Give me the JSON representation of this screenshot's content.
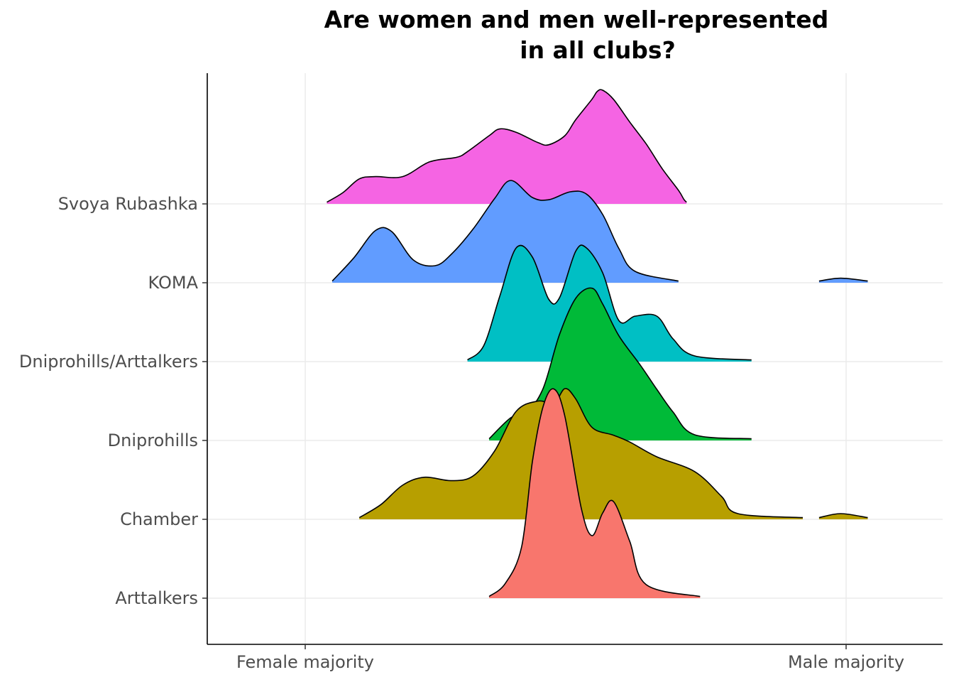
{
  "chart_data": {
    "type": "ridgeline",
    "title": "Are women and men well-represented\nin all clubs?",
    "title_lines": [
      "Are women and men well-represented",
      "in all clubs?"
    ],
    "xlabel": "",
    "ylabel": "",
    "x_tick_labels": [
      "Female majority",
      "Male majority"
    ],
    "x_tick_values": [
      0,
      1
    ],
    "xlim": [
      -0.18,
      1.18
    ],
    "grid": true,
    "legend": "none",
    "categories": [
      "Svoya Rubashka",
      "KOMA",
      "Dniprohills/Arttalkers",
      "Dniprohills",
      "Chamber",
      "Arttalkers"
    ],
    "series": [
      {
        "name": "Svoya Rubashka",
        "color": "#F564E3",
        "segments": [
          [
            [
              0.04,
              0.015
            ],
            [
              0.07,
              0.1
            ],
            [
              0.1,
              0.22
            ],
            [
              0.13,
              0.24
            ],
            [
              0.18,
              0.24
            ],
            [
              0.23,
              0.37
            ],
            [
              0.28,
              0.41
            ],
            [
              0.3,
              0.46
            ],
            [
              0.34,
              0.6
            ],
            [
              0.36,
              0.66
            ],
            [
              0.39,
              0.63
            ],
            [
              0.43,
              0.54
            ],
            [
              0.45,
              0.52
            ],
            [
              0.48,
              0.6
            ],
            [
              0.5,
              0.74
            ],
            [
              0.53,
              0.92
            ],
            [
              0.54,
              0.99
            ],
            [
              0.55,
              1.0
            ],
            [
              0.57,
              0.92
            ],
            [
              0.6,
              0.72
            ],
            [
              0.63,
              0.53
            ],
            [
              0.66,
              0.31
            ],
            [
              0.69,
              0.12
            ],
            [
              0.7,
              0.04
            ],
            [
              0.705,
              0.015
            ]
          ]
        ]
      },
      {
        "name": "KOMA",
        "color": "#619CFF",
        "segments": [
          [
            [
              0.05,
              0.015
            ],
            [
              0.09,
              0.22
            ],
            [
              0.13,
              0.46
            ],
            [
              0.16,
              0.45
            ],
            [
              0.2,
              0.2
            ],
            [
              0.24,
              0.15
            ],
            [
              0.27,
              0.25
            ],
            [
              0.31,
              0.47
            ],
            [
              0.35,
              0.74
            ],
            [
              0.38,
              0.9
            ],
            [
              0.42,
              0.75
            ],
            [
              0.45,
              0.73
            ],
            [
              0.49,
              0.8
            ],
            [
              0.52,
              0.78
            ],
            [
              0.55,
              0.6
            ],
            [
              0.58,
              0.3
            ],
            [
              0.61,
              0.1
            ],
            [
              0.69,
              0.015
            ]
          ],
          [
            [
              0.95,
              0.015
            ],
            [
              0.99,
              0.04
            ],
            [
              1.04,
              0.015
            ]
          ]
        ]
      },
      {
        "name": "Dniprohills/Arttalkers",
        "color": "#00BFC4",
        "segments": [
          [
            [
              0.3,
              0.015
            ],
            [
              0.33,
              0.14
            ],
            [
              0.36,
              0.58
            ],
            [
              0.39,
              1.0
            ],
            [
              0.42,
              0.92
            ],
            [
              0.45,
              0.55
            ],
            [
              0.47,
              0.56
            ],
            [
              0.5,
              0.97
            ],
            [
              0.52,
              1.0
            ],
            [
              0.55,
              0.78
            ],
            [
              0.58,
              0.36
            ],
            [
              0.61,
              0.4
            ],
            [
              0.65,
              0.4
            ],
            [
              0.68,
              0.2
            ],
            [
              0.72,
              0.05
            ],
            [
              0.825,
              0.015
            ]
          ]
        ]
      },
      {
        "name": "Dniprohills",
        "color": "#00BA38",
        "segments": [
          [
            [
              0.34,
              0.015
            ],
            [
              0.38,
              0.2
            ],
            [
              0.41,
              0.25
            ],
            [
              0.44,
              0.46
            ],
            [
              0.47,
              0.93
            ],
            [
              0.5,
              1.25
            ],
            [
              0.53,
              1.34
            ],
            [
              0.55,
              1.2
            ],
            [
              0.58,
              0.92
            ],
            [
              0.62,
              0.66
            ],
            [
              0.65,
              0.45
            ],
            [
              0.68,
              0.25
            ],
            [
              0.72,
              0.05
            ],
            [
              0.825,
              0.015
            ]
          ]
        ]
      },
      {
        "name": "Chamber",
        "color": "#B79F00",
        "segments": [
          [
            [
              0.1,
              0.015
            ],
            [
              0.14,
              0.13
            ],
            [
              0.18,
              0.3
            ],
            [
              0.22,
              0.37
            ],
            [
              0.27,
              0.34
            ],
            [
              0.31,
              0.38
            ],
            [
              0.35,
              0.6
            ],
            [
              0.39,
              0.95
            ],
            [
              0.43,
              1.04
            ],
            [
              0.46,
              1.02
            ],
            [
              0.48,
              1.15
            ],
            [
              0.5,
              1.06
            ],
            [
              0.53,
              0.81
            ],
            [
              0.57,
              0.74
            ],
            [
              0.6,
              0.68
            ],
            [
              0.65,
              0.55
            ],
            [
              0.72,
              0.42
            ],
            [
              0.77,
              0.2
            ],
            [
              0.8,
              0.05
            ],
            [
              0.92,
              0.015
            ]
          ],
          [
            [
              0.95,
              0.015
            ],
            [
              0.99,
              0.05
            ],
            [
              1.04,
              0.015
            ]
          ]
        ]
      },
      {
        "name": "Arttalkers",
        "color": "#F8766D",
        "segments": [
          [
            [
              0.34,
              0.015
            ],
            [
              0.37,
              0.13
            ],
            [
              0.4,
              0.45
            ],
            [
              0.42,
              1.2
            ],
            [
              0.44,
              1.69
            ],
            [
              0.46,
              1.84
            ],
            [
              0.48,
              1.6
            ],
            [
              0.51,
              0.8
            ],
            [
              0.53,
              0.55
            ],
            [
              0.55,
              0.75
            ],
            [
              0.57,
              0.85
            ],
            [
              0.6,
              0.5
            ],
            [
              0.63,
              0.12
            ],
            [
              0.73,
              0.015
            ]
          ]
        ]
      }
    ]
  }
}
